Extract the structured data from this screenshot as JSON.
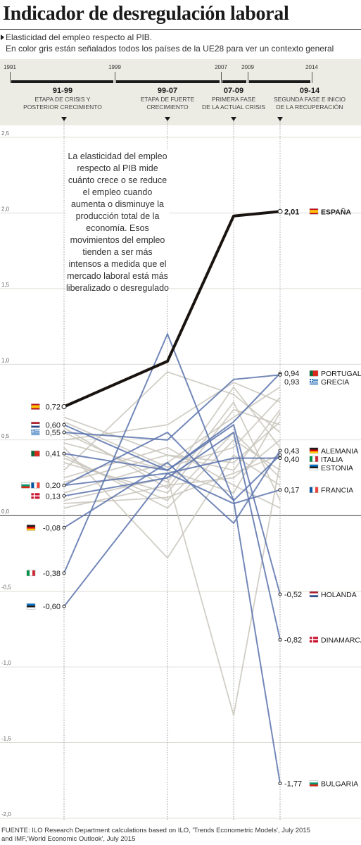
{
  "header": {
    "title": "Indicador de desregulación laboral",
    "subtitle_line1": "Elasticidad del empleo respecto al PIB.",
    "subtitle_line2": "En color gris están señalados todos los países de la UE28 para ver un contexto general"
  },
  "timeline": {
    "years": [
      "1991",
      "1999",
      "2007",
      "2009",
      "2014"
    ],
    "phases": [
      {
        "code": "91-99",
        "line1": "ETAPA DE CRISIS Y",
        "line2": "POSTERIOR CRECIMIENTO"
      },
      {
        "code": "99-07",
        "line1": "ETAPA DE FUERTE",
        "line2": "CRECIMIENTO"
      },
      {
        "code": "07-09",
        "line1": "PRIMERA FASE",
        "line2": "DE LA ACTUAL CRISIS"
      },
      {
        "code": "09-14",
        "line1": "SEGUNDA FASE E INICIO",
        "line2": "DE LA RECUPERACIÓN"
      }
    ]
  },
  "annotation": "La elasticidad del empleo respecto al PIB mide cuánto crece o se reduce el empleo cuando aumenta o disminuye la producción total de la economía. Esos movimientos del empleo tienden a ser más intensos a medida que el mercado laboral está más liberalizado o desregulado",
  "source": {
    "line1": "FUENTE: ILO Research Department calculations based on ILO, 'Trends Econometric Models', July 2015",
    "line2": "and IMF,'World Economic Outlook', July 2015"
  },
  "colors": {
    "highlight": "#1a1410",
    "blue": "#5b73ad",
    "gray": "#c9c6bc",
    "band": "#ecebe4"
  },
  "chart_data": {
    "type": "line",
    "x": [
      "91-99",
      "99-07",
      "07-09",
      "09-14"
    ],
    "ylim": [
      -2.0,
      2.5
    ],
    "y_ticks": [
      2.5,
      2.0,
      1.5,
      1.0,
      0.5,
      0.0,
      -0.5,
      -1.0,
      -1.5,
      -2.0
    ],
    "y_tick_labels": [
      "2,5",
      "2,0",
      "1,5",
      "1,0",
      "0,5",
      "0,0",
      "-0,5",
      "-1,0",
      "-1,5",
      "-2,0"
    ],
    "start_labels": [
      {
        "text": "0,72",
        "value": 0.72,
        "flags": [
          "es"
        ]
      },
      {
        "text": "0,60",
        "value": 0.6,
        "flags": [
          "nl"
        ]
      },
      {
        "text": "0,55",
        "value": 0.55,
        "flags": [
          "gr"
        ]
      },
      {
        "text": "0,41",
        "value": 0.41,
        "flags": [
          "pt"
        ]
      },
      {
        "text": "0,20",
        "value": 0.2,
        "flags": [
          "bg",
          "fr"
        ]
      },
      {
        "text": "0,13",
        "value": 0.13,
        "flags": [
          "dk"
        ]
      },
      {
        "text": "-0,08",
        "value": -0.08,
        "flags": [
          "de"
        ]
      },
      {
        "text": "-0,38",
        "value": -0.38,
        "flags": [
          "it"
        ]
      },
      {
        "text": "-0,60",
        "value": -0.6,
        "flags": [
          "ee"
        ]
      }
    ],
    "end_labels": [
      {
        "value": 2.01,
        "text": "2,01",
        "country": "ESPAÑA",
        "flag": "es",
        "bold": true
      },
      {
        "value": 0.94,
        "text": "0,94",
        "country": "PORTUGAL",
        "flag": "pt"
      },
      {
        "value": 0.93,
        "text": "0,93",
        "country": "GRECIA",
        "flag": "gr"
      },
      {
        "value": 0.43,
        "text": "0,43",
        "country": "ALEMANIA",
        "flag": "de"
      },
      {
        "value": 0.4,
        "text": "0,40",
        "country": "ITALIA",
        "flag": "it"
      },
      {
        "value": 0.38,
        "text": "",
        "country": "ESTONIA",
        "flag": "ee"
      },
      {
        "value": 0.17,
        "text": "0,17",
        "country": "FRANCIA",
        "flag": "fr"
      },
      {
        "value": -0.52,
        "text": "-0,52",
        "country": "HOLANDA",
        "flag": "nl"
      },
      {
        "value": -0.82,
        "text": "-0,82",
        "country": "DINAMARCA",
        "flag": "dk"
      },
      {
        "value": -1.77,
        "text": "-1,77",
        "country": "BULGARIA",
        "flag": "bg"
      }
    ],
    "series": [
      {
        "name": "ESPAÑA",
        "role": "highlight",
        "values": [
          0.72,
          1.02,
          1.98,
          2.01
        ]
      },
      {
        "name": "PORTUGAL",
        "role": "blue",
        "values": [
          0.41,
          0.3,
          0.62,
          0.94
        ]
      },
      {
        "name": "GRECIA",
        "role": "blue",
        "values": [
          0.55,
          0.5,
          0.9,
          0.93
        ]
      },
      {
        "name": "ALEMANIA",
        "role": "blue",
        "values": [
          -0.08,
          0.35,
          -0.05,
          0.43
        ]
      },
      {
        "name": "ITALIA",
        "role": "blue",
        "values": [
          -0.38,
          1.2,
          0.1,
          0.4
        ]
      },
      {
        "name": "ESTONIA",
        "role": "blue",
        "values": [
          -0.6,
          0.28,
          0.38,
          0.38
        ]
      },
      {
        "name": "FRANCIA",
        "role": "blue",
        "values": [
          0.2,
          0.28,
          0.08,
          0.17
        ]
      },
      {
        "name": "HOLANDA",
        "role": "blue",
        "values": [
          0.6,
          0.3,
          0.6,
          -0.52
        ]
      },
      {
        "name": "DINAMARCA",
        "role": "blue",
        "values": [
          0.13,
          0.25,
          0.55,
          -0.82
        ]
      },
      {
        "name": "BULGARIA",
        "role": "blue",
        "values": [
          0.2,
          0.55,
          0.1,
          -1.77
        ]
      }
    ],
    "gray_series": [
      [
        0.3,
        0.95,
        0.8,
        0.55
      ],
      [
        0.5,
        0.6,
        0.88,
        0.75
      ],
      [
        0.65,
        0.4,
        0.3,
        0.7
      ],
      [
        0.1,
        0.25,
        -1.32,
        0.35
      ],
      [
        0.45,
        -0.28,
        0.4,
        0.2
      ],
      [
        0.35,
        0.15,
        0.7,
        0.6
      ],
      [
        0.25,
        0.45,
        0.2,
        0.05
      ],
      [
        0.55,
        0.22,
        0.85,
        0.45
      ],
      [
        0.4,
        0.05,
        0.5,
        0.3
      ],
      [
        0.15,
        0.35,
        0.65,
        0.85
      ],
      [
        0.05,
        0.2,
        0.25,
        0.5
      ],
      [
        0.48,
        0.3,
        0.15,
        0.68
      ],
      [
        0.38,
        0.1,
        0.55,
        0.25
      ],
      [
        0.58,
        0.18,
        0.75,
        0.1
      ],
      [
        0.22,
        0.4,
        0.35,
        0.62
      ],
      [
        0.62,
        0.32,
        0.45,
        0.78
      ],
      [
        0.08,
        0.12,
        0.28,
        0.4
      ]
    ]
  }
}
